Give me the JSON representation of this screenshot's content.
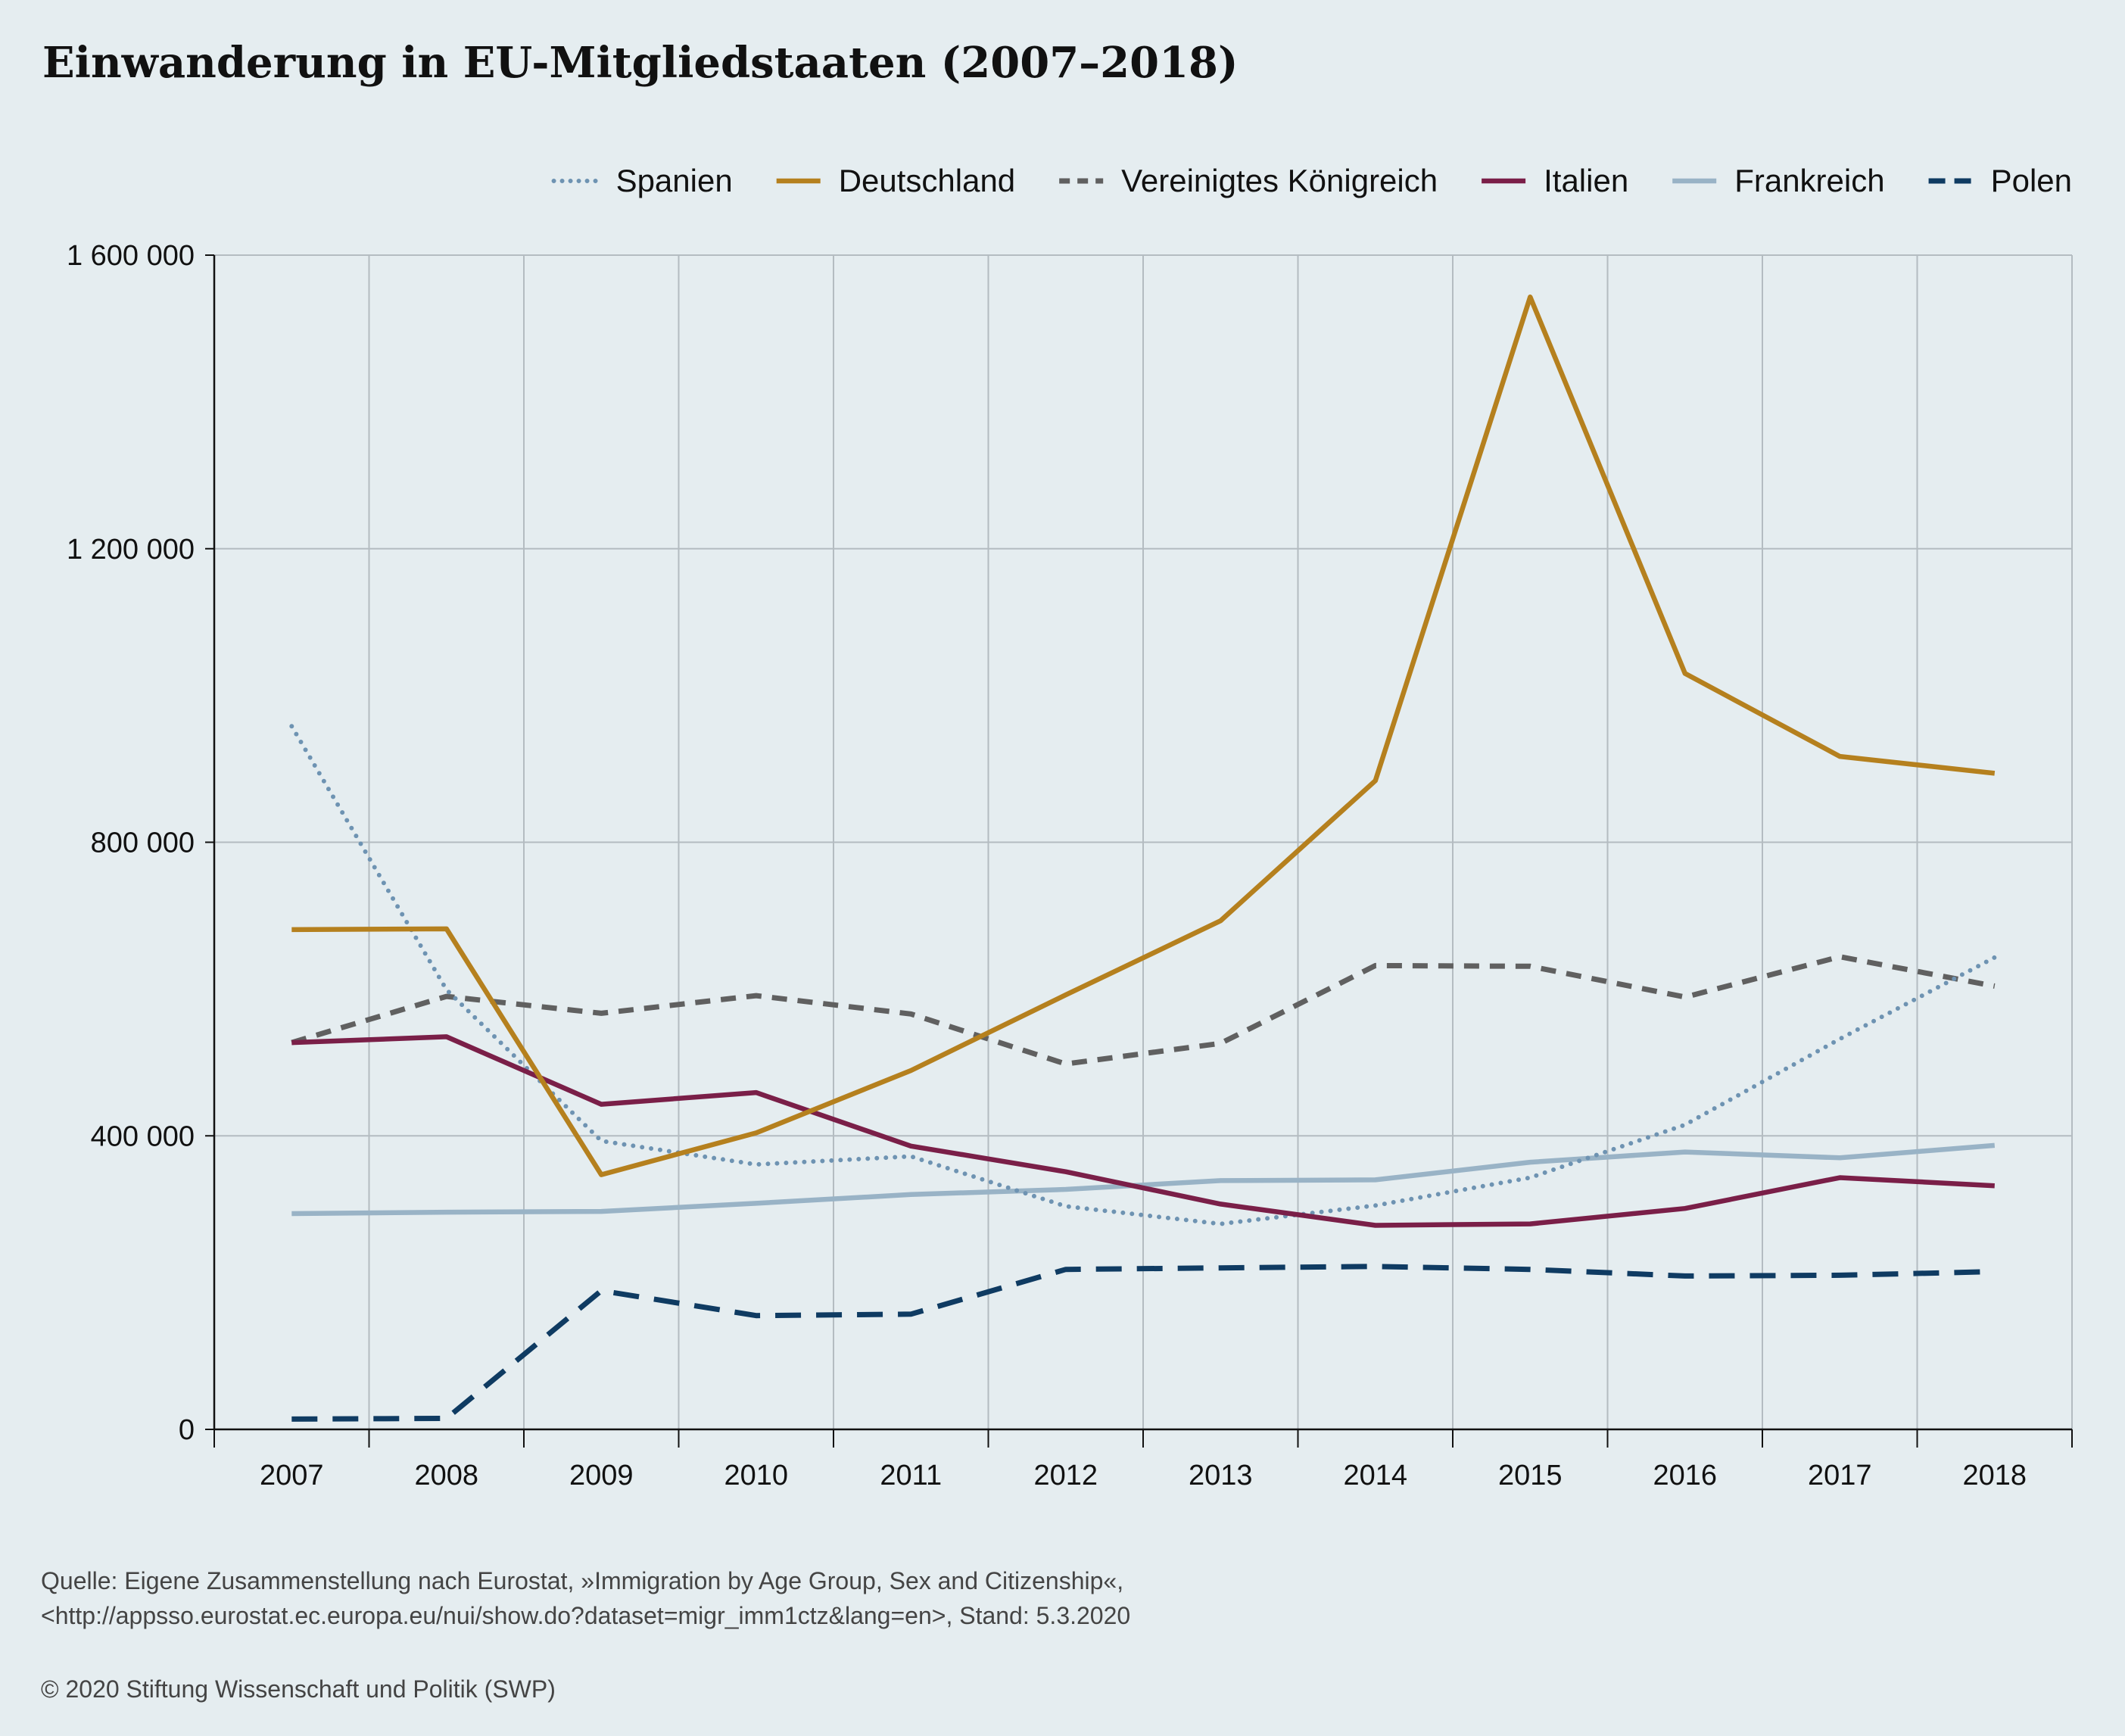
{
  "title": "Einwanderung in EU-Mitgliedstaaten (2007–2018)",
  "source_line1": "Quelle: Eigene Zusammenstellung nach Eurostat, »Immigration by Age Group, Sex and Citizenship«,",
  "source_line2": "<http://appsso.eurostat.ec.europa.eu/nui/show.do?dataset=migr_imm1ctz&lang=en>, Stand: 5.3.2020",
  "copyright": "© 2020 Stiftung Wissenschaft und Politik (SWP)",
  "chart_data": {
    "type": "line",
    "title": "Einwanderung in EU-Mitgliedstaaten (2007–2018)",
    "xlabel": "",
    "ylabel": "",
    "x": [
      "2007",
      "2008",
      "2009",
      "2010",
      "2011",
      "2012",
      "2013",
      "2014",
      "2015",
      "2016",
      "2017",
      "2018"
    ],
    "ylim": [
      0,
      1600000
    ],
    "yticks": [
      0,
      400000,
      800000,
      1200000,
      1600000
    ],
    "ytick_labels": [
      "0",
      "400 000",
      "800 000",
      "1 200 000",
      "1 600 000"
    ],
    "grid": true,
    "legend_position": "top-right",
    "series": [
      {
        "name": "Spanien",
        "style": "dotted",
        "color": "#6e93b2",
        "values": [
          958000,
          599000,
          393000,
          361000,
          372000,
          304000,
          280000,
          305000,
          343000,
          415000,
          532000,
          643000
        ]
      },
      {
        "name": "Deutschland",
        "style": "solid",
        "color": "#b5801e",
        "values": [
          681000,
          682000,
          347000,
          404000,
          489000,
          592000,
          693000,
          884000,
          1543000,
          1030000,
          917000,
          894000
        ]
      },
      {
        "name": "Vereinigtes Königreich",
        "style": "dashed",
        "color": "#606060",
        "values": [
          527000,
          590000,
          567000,
          591000,
          566000,
          498000,
          526000,
          632000,
          631000,
          589000,
          644000,
          604000
        ]
      },
      {
        "name": "Italien",
        "style": "solid",
        "color": "#7a1f48",
        "values": [
          527000,
          535000,
          443000,
          459000,
          386000,
          351000,
          307000,
          278000,
          280000,
          301000,
          343000,
          332000
        ]
      },
      {
        "name": "Frankreich",
        "style": "solid",
        "color": "#99b3c6",
        "values": [
          294000,
          296000,
          297000,
          308000,
          320000,
          327000,
          339000,
          340000,
          364000,
          378000,
          370000,
          387000
        ]
      },
      {
        "name": "Polen",
        "style": "dashed",
        "color": "#0f3b62",
        "values": [
          14000,
          15000,
          189000,
          155000,
          157000,
          218000,
          220000,
          222000,
          218000,
          209000,
          210000,
          215000
        ]
      }
    ]
  }
}
